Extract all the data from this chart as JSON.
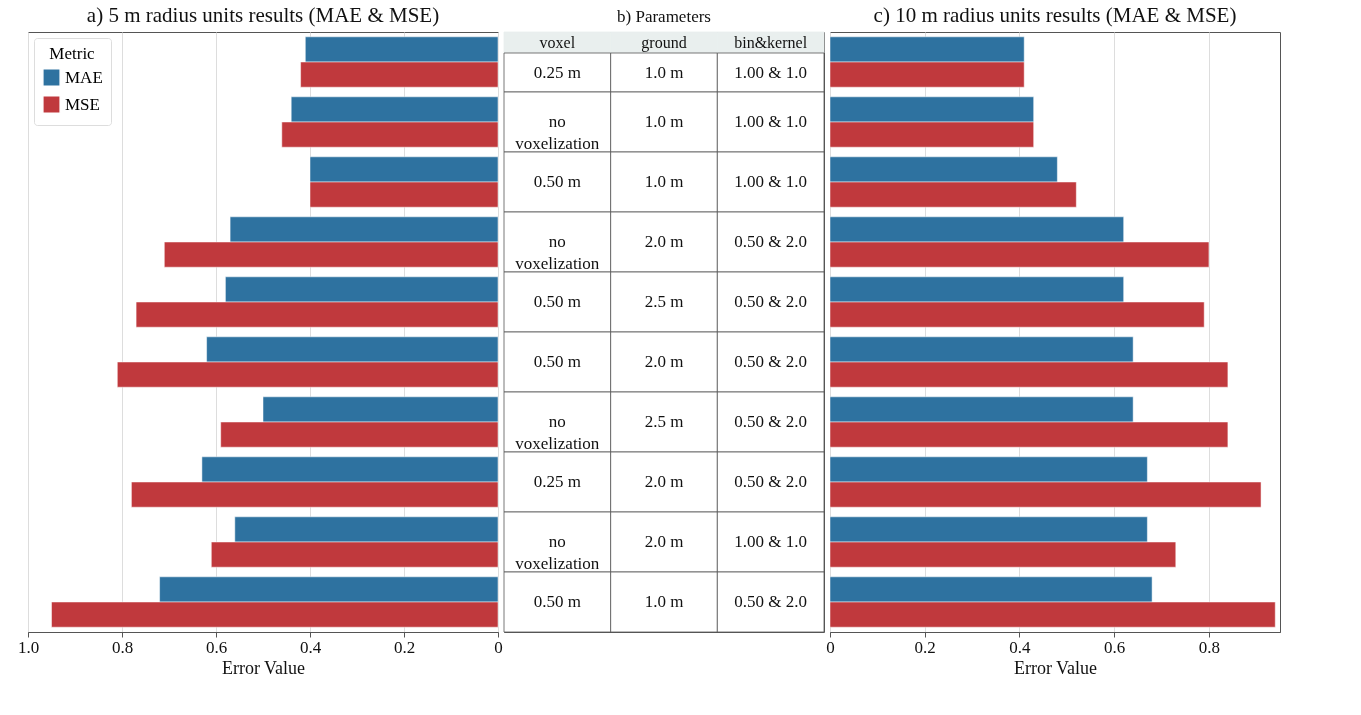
{
  "chart_data": [
    {
      "type": "bar",
      "orientation": "horizontal",
      "title": "a) 5 m radius units results (MAE & MSE)",
      "xlabel": "Error Value",
      "legend_title": "Metric",
      "legend": "top left",
      "grid": "x",
      "categories": [
        null,
        null,
        null,
        null,
        null,
        null,
        null,
        null,
        null,
        null
      ],
      "xlim": [
        1.0,
        0
      ],
      "xticks": [
        {
          "value": 1.0,
          "label": "1.0"
        },
        0.8,
        0.6,
        0.4,
        0.2,
        0
      ],
      "series": [
        {
          "name": "MAE",
          "color": "#2e72a0",
          "values": [
            0.41,
            0.44,
            0.4,
            0.57,
            0.58,
            0.62,
            0.5,
            0.63,
            0.56,
            0.72
          ]
        },
        {
          "name": "MSE",
          "color": "#c0393d",
          "values": [
            0.42,
            0.46,
            0.4,
            0.71,
            0.77,
            0.81,
            0.59,
            0.78,
            0.61,
            0.95
          ]
        }
      ]
    },
    {
      "type": "other",
      "title": "b) Parameters",
      "categories": [
        "voxel",
        "ground",
        "bin&kernel"
      ],
      "cell_labels": [
        [
          "0.25 m",
          "1.0 m",
          "1.00 & 1.0"
        ],
        [
          "no\nvoxelization",
          "1.0 m",
          "1.00 & 1.0"
        ],
        [
          "0.50 m",
          "1.0 m",
          "1.00 & 1.0"
        ],
        [
          "no\nvoxelization",
          "2.0 m",
          "0.50 & 2.0"
        ],
        [
          "0.50 m",
          "2.5 m",
          "0.50 & 2.0"
        ],
        [
          "0.50 m",
          "2.0 m",
          "0.50 & 2.0"
        ],
        [
          "no\nvoxelization",
          "2.5 m",
          "0.50 & 2.0"
        ],
        [
          "0.25 m",
          "2.0 m",
          "0.50 & 2.0"
        ],
        [
          "no\nvoxelization",
          "2.0 m",
          "1.00 & 1.0"
        ],
        [
          "0.50 m",
          "1.0 m",
          "0.50 & 2.0"
        ]
      ]
    },
    {
      "type": "bar",
      "orientation": "horizontal",
      "title": "c) 10 m radius units results (MAE & MSE)",
      "xlabel": "Error Value",
      "grid": "x",
      "categories": [
        null,
        null,
        null,
        null,
        null,
        null,
        null,
        null,
        null,
        null
      ],
      "xlim": [
        0,
        0.95
      ],
      "xticks": [
        0,
        0.2,
        0.4,
        0.6,
        0.8
      ],
      "series": [
        {
          "name": "MAE",
          "color": "#2e72a0",
          "values": [
            0.41,
            0.43,
            0.48,
            0.62,
            0.62,
            0.64,
            0.64,
            0.67,
            0.67,
            0.68
          ]
        },
        {
          "name": "MSE",
          "color": "#c0393d",
          "values": [
            0.41,
            0.43,
            0.52,
            0.8,
            0.79,
            0.84,
            0.84,
            0.91,
            0.73,
            0.94
          ]
        }
      ]
    }
  ]
}
